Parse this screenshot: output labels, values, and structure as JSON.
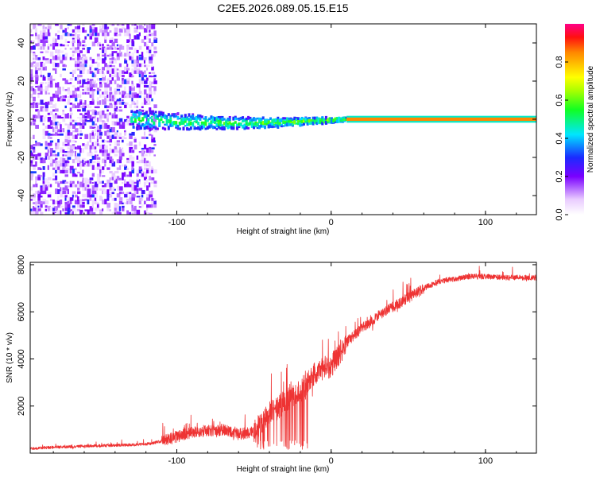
{
  "figure_title": "C2E5.2026.089.05.15.E15",
  "colors": {
    "signal": "#ee3333",
    "axis": "#000000",
    "background": "#ffffff"
  },
  "chart_data": [
    {
      "type": "heatmap",
      "title": "C2E5.2026.089.05.15.E15",
      "xlabel": "Height of straight line (km)",
      "ylabel": "Frequency (Hz)",
      "xlim": [
        -195,
        133
      ],
      "ylim": [
        -50,
        50
      ],
      "xticks": [
        -100,
        0,
        100
      ],
      "xtick_labels": [
        "-100",
        "0",
        "100"
      ],
      "yticks": [
        -40,
        -20,
        0,
        20,
        40
      ],
      "ytick_labels": [
        "-40",
        "-20",
        "0",
        "20",
        "40"
      ],
      "colorbar": {
        "label": "Normalized spectral amplitude",
        "range": [
          0,
          1
        ],
        "ticks": [
          0.0,
          0.2,
          0.4,
          0.6,
          0.8
        ],
        "tick_labels": [
          "0.0",
          "0.2",
          "0.4",
          "0.6",
          "0.8"
        ],
        "colormap": "rainbow (white-violet-blue-cyan-green-yellow-red-magenta)"
      },
      "regions": [
        {
          "name": "noise",
          "x_range": [
            -195,
            -115
          ],
          "freq_range": [
            -50,
            50
          ],
          "amplitude": 0.1
        },
        {
          "name": "emerging-signal",
          "x_range": [
            -130,
            10
          ],
          "freq_center": [
            0,
            -2
          ],
          "amplitude": 0.35
        },
        {
          "name": "stable-tone",
          "x_range": [
            10,
            133
          ],
          "freq": 0,
          "amplitude": 0.85
        }
      ]
    },
    {
      "type": "line",
      "title": "",
      "xlabel": "Height of straight line (km)",
      "ylabel": "SNR (10 * v/v)",
      "xlim": [
        -195,
        133
      ],
      "ylim": [
        0,
        8100
      ],
      "xticks": [
        -100,
        0,
        100
      ],
      "xtick_labels": [
        "-100",
        "0",
        "100"
      ],
      "yticks": [
        2000,
        4000,
        6000,
        8000
      ],
      "ytick_labels": [
        "2000",
        "4000",
        "6000",
        "8000"
      ],
      "series": [
        {
          "name": "SNR",
          "color": "#ee3333",
          "x": [
            -195,
            -180,
            -160,
            -140,
            -120,
            -110,
            -100,
            -90,
            -80,
            -70,
            -60,
            -50,
            -45,
            -40,
            -35,
            -30,
            -25,
            -20,
            -15,
            -10,
            -5,
            0,
            5,
            10,
            20,
            30,
            40,
            50,
            60,
            70,
            80,
            90,
            100,
            110,
            120,
            133
          ],
          "y": [
            200,
            250,
            300,
            330,
            380,
            500,
            700,
            900,
            950,
            1000,
            800,
            900,
            1300,
            1700,
            1900,
            2200,
            2400,
            2600,
            3000,
            3400,
            3600,
            3700,
            4200,
            4700,
            5300,
            5800,
            6200,
            6600,
            7000,
            7300,
            7400,
            7500,
            7500,
            7450,
            7450,
            7450
          ]
        }
      ]
    }
  ]
}
